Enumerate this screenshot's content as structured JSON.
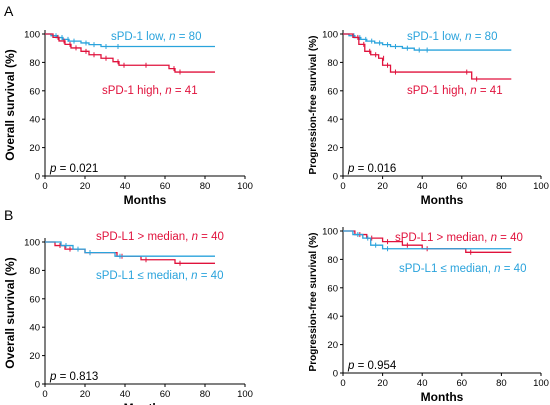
{
  "figure": {
    "panel_letters": [
      "A",
      "B"
    ]
  },
  "chart_data": [
    {
      "panel": "A",
      "type": "line",
      "ylabel": "Overall survival (%)",
      "xlabel": "Months",
      "xlim": [
        0,
        100
      ],
      "ylim": [
        0,
        100
      ],
      "xticks": [
        0,
        20,
        40,
        60,
        80,
        100
      ],
      "yticks": [
        0,
        20,
        40,
        60,
        80,
        100
      ],
      "p_value": "0.021",
      "series": [
        {
          "name": "sPD-1 low",
          "n": "80",
          "color": "#2aa3dc",
          "x": [
            0,
            3,
            6,
            9,
            12,
            18,
            22,
            28,
            34,
            85
          ],
          "y": [
            100,
            98.8,
            97.5,
            96.2,
            95.0,
            93.7,
            92.5,
            91.2,
            91.2,
            91.2
          ]
        },
        {
          "name": "sPD-1 high",
          "n": "41",
          "color": "#e0123c",
          "x": [
            0,
            4,
            7,
            10,
            13,
            18,
            22,
            28,
            34,
            37,
            48,
            62,
            65,
            85
          ],
          "y": [
            100,
            97.6,
            95.1,
            92.7,
            90.2,
            87.8,
            85.4,
            82.9,
            80.5,
            78.0,
            78.0,
            75.6,
            73.2,
            73.2
          ]
        }
      ],
      "annotations": [
        {
          "series": 0,
          "text": "sPD-1 low, ",
          "n_prefix": "n",
          "n_text": " = 80"
        },
        {
          "series": 1,
          "text": "sPD-1 high, ",
          "n_prefix": "n",
          "n_text": " = 41"
        }
      ]
    },
    {
      "panel": "A",
      "type": "line",
      "ylabel": "Progression-free survival (%)",
      "xlabel": "Months",
      "xlim": [
        0,
        100
      ],
      "ylim": [
        0,
        100
      ],
      "xticks": [
        0,
        20,
        40,
        60,
        80,
        100
      ],
      "yticks": [
        0,
        20,
        40,
        60,
        80,
        100
      ],
      "p_value": "0.016",
      "series": [
        {
          "name": "sPD-1 low",
          "n": "80",
          "color": "#2aa3dc",
          "x": [
            0,
            3,
            6,
            9,
            12,
            16,
            20,
            24,
            30,
            36,
            40,
            85
          ],
          "y": [
            100,
            98.8,
            97.5,
            96.2,
            95.0,
            93.7,
            92.5,
            91.2,
            90.0,
            88.7,
            88.7,
            88.7
          ]
        },
        {
          "name": "sPD-1 high",
          "n": "41",
          "color": "#e0123c",
          "x": [
            0,
            5,
            8,
            11,
            14,
            18,
            20,
            24,
            60,
            65,
            85
          ],
          "y": [
            100,
            97.6,
            92.7,
            87.8,
            85.4,
            82.9,
            78.0,
            73.2,
            73.2,
            68.3,
            68.3
          ]
        }
      ],
      "annotations": [
        {
          "series": 0,
          "text": "sPD-1 low, ",
          "n_prefix": "n",
          "n_text": " = 80"
        },
        {
          "series": 1,
          "text": "sPD-1 high, ",
          "n_prefix": "n",
          "n_text": " = 41"
        }
      ]
    },
    {
      "panel": "B",
      "type": "line",
      "ylabel": "Overall survival (%)",
      "xlabel": "Months",
      "xlim": [
        0,
        100
      ],
      "ylim": [
        0,
        100
      ],
      "xticks": [
        0,
        20,
        40,
        60,
        80,
        100
      ],
      "yticks": [
        0,
        20,
        40,
        60,
        80,
        100
      ],
      "p_value": "0.813",
      "series": [
        {
          "name": "sPD-L1 > median",
          "n": "40",
          "color": "#e0123c",
          "x": [
            0,
            5,
            10,
            20,
            36,
            48,
            65,
            85
          ],
          "y": [
            100,
            97.5,
            95.0,
            92.5,
            90.0,
            87.5,
            85.0,
            85.0
          ]
        },
        {
          "name": "sPD-L1 ≤ median",
          "n": "40",
          "color": "#2aa3dc",
          "x": [
            0,
            8,
            14,
            20,
            35,
            85
          ],
          "y": [
            100,
            97.5,
            95.0,
            92.5,
            90.0,
            90.0
          ]
        }
      ],
      "annotations": [
        {
          "series": 0,
          "text": "sPD-L1 > median, ",
          "n_prefix": "n",
          "n_text": " = 40"
        },
        {
          "series": 1,
          "text": "sPD-L1 ≤ median, ",
          "n_prefix": "n",
          "n_text": " = 40"
        }
      ]
    },
    {
      "panel": "B",
      "type": "line",
      "ylabel": "Progression-free survival (%)",
      "xlabel": "Months",
      "xlim": [
        0,
        100
      ],
      "ylim": [
        0,
        100
      ],
      "xticks": [
        0,
        20,
        40,
        60,
        80,
        100
      ],
      "yticks": [
        0,
        20,
        40,
        60,
        80,
        100
      ],
      "p_value": "0.954",
      "series": [
        {
          "name": "sPD-L1 > median",
          "n": "40",
          "color": "#e0123c",
          "x": [
            0,
            6,
            12,
            20,
            30,
            40,
            62,
            85
          ],
          "y": [
            100,
            97.5,
            95.0,
            92.5,
            90.0,
            87.5,
            85.0,
            85.0
          ]
        },
        {
          "name": "sPD-L1 ≤ median",
          "n": "40",
          "color": "#2aa3dc",
          "x": [
            0,
            5,
            10,
            14,
            20,
            85
          ],
          "y": [
            100,
            97.5,
            95.0,
            90.0,
            87.5,
            87.5
          ]
        }
      ],
      "annotations": [
        {
          "series": 0,
          "text": "sPD-L1 > median, ",
          "n_prefix": "n",
          "n_text": " = 40"
        },
        {
          "series": 1,
          "text": "sPD-L1 ≤ median, ",
          "n_prefix": "n",
          "n_text": " = 40"
        }
      ]
    }
  ]
}
